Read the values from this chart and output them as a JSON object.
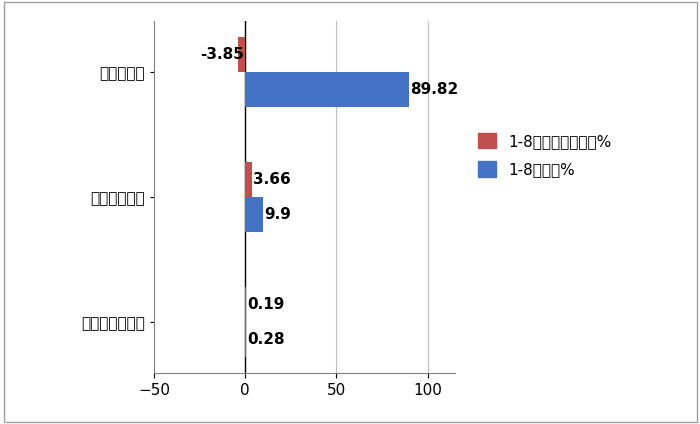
{
  "categories": [
    "插电式混动重卡",
    "燃料电池重卡",
    "纯电动重卡"
  ],
  "series1_values": [
    0.19,
    3.66,
    -3.85
  ],
  "series2_values": [
    0.28,
    9.9,
    89.82
  ],
  "series1_label": "1-8月占比同比增减%",
  "series2_label": "1-8月占比%",
  "series1_color": "#C0504D",
  "series2_color": "#4472C4",
  "xlim": [
    -50,
    115
  ],
  "xticks": [
    -50,
    0,
    50,
    100
  ],
  "bar_height": 0.28,
  "bg_color": "#FFFFFF",
  "grid_color": "#C0C0C0",
  "label_fontsize": 11,
  "tick_fontsize": 11,
  "legend_fontsize": 11,
  "border_color": "#808080"
}
